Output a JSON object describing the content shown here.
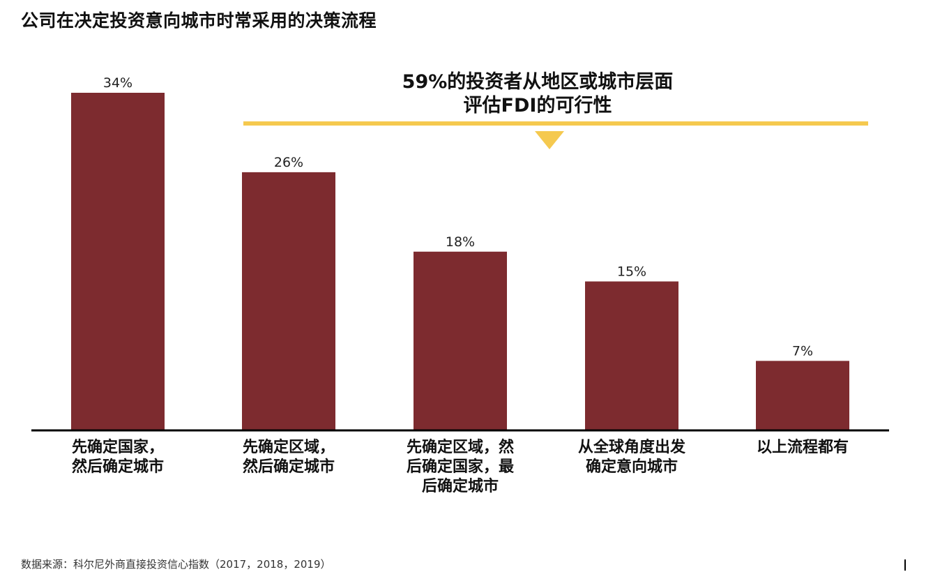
{
  "chart_data": {
    "type": "bar",
    "title": "公司在决定投资意向城市时常采用的决策流程",
    "categories": [
      [
        "先确定国家，",
        "然后确定城市"
      ],
      [
        "先确定区域，",
        "然后确定城市"
      ],
      [
        "先确定区域，然",
        "后确定国家，最",
        "后确定城市"
      ],
      [
        "从全球角度出发",
        "确定意向城市"
      ],
      [
        "以上流程都有"
      ]
    ],
    "values": [
      34,
      26,
      18,
      15,
      7
    ],
    "value_labels": [
      "34%",
      "26%",
      "18%",
      "15%",
      "7%"
    ],
    "ylim": [
      0,
      34
    ],
    "grid": false,
    "annotation": {
      "lines": [
        "59%的投资者从地区或城市层面",
        "评估FDI的可行性"
      ],
      "spans_categories": [
        1,
        4
      ]
    },
    "bar_color": "#7d2b2f",
    "annotation_color": "#f5c94f"
  },
  "source": "数据来源：科尔尼外商直接投资信心指数（2017，2018，2019）"
}
